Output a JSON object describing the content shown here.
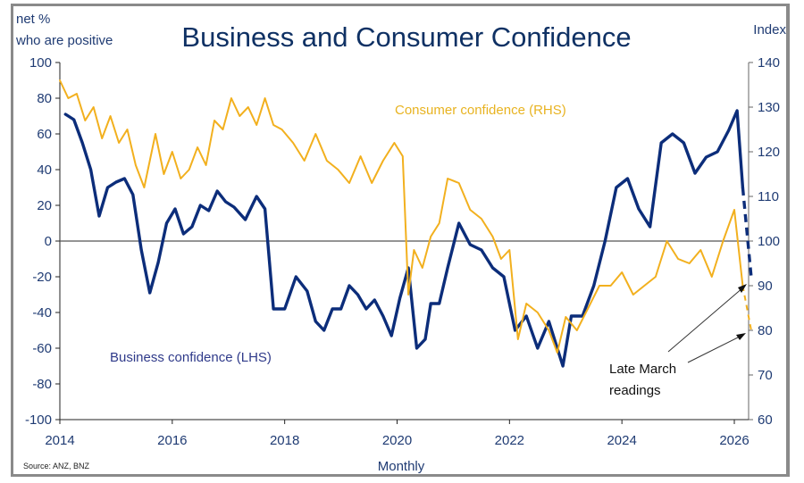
{
  "chart_data": {
    "type": "line",
    "title": "Business and Consumer Confidence",
    "left_axis": {
      "label_line1": "net %",
      "label_line2": "who are positive",
      "range": [
        -100,
        100
      ],
      "ticks": [
        100,
        80,
        60,
        40,
        20,
        0,
        -20,
        -40,
        -60,
        -80,
        -100
      ]
    },
    "right_axis": {
      "label": "Index",
      "range": [
        60,
        140
      ],
      "ticks": [
        140,
        130,
        120,
        110,
        100,
        90,
        80,
        70,
        60
      ]
    },
    "xlabel": "Monthly",
    "x_ticks": [
      "2014",
      "2016",
      "2018",
      "2020",
      "2022",
      "2024",
      "2026"
    ],
    "x_range": [
      2014,
      2026.5
    ],
    "source": "Source: ANZ, BNZ",
    "annotation": {
      "line1": "Late March",
      "line2": "readings"
    },
    "series": [
      {
        "name": "Business confidence (LHS)",
        "axis": "left",
        "color": "#0c2d7a",
        "x": [
          2014.1,
          2014.25,
          2014.4,
          2014.55,
          2014.7,
          2014.85,
          2015.0,
          2015.15,
          2015.3,
          2015.45,
          2015.6,
          2015.75,
          2015.9,
          2016.05,
          2016.2,
          2016.35,
          2016.5,
          2016.65,
          2016.8,
          2016.95,
          2017.1,
          2017.3,
          2017.5,
          2017.65,
          2017.8,
          2018.0,
          2018.2,
          2018.4,
          2018.55,
          2018.7,
          2018.85,
          2019.0,
          2019.15,
          2019.3,
          2019.45,
          2019.6,
          2019.75,
          2019.9,
          2020.05,
          2020.2,
          2020.35,
          2020.5,
          2020.6,
          2020.75,
          2020.9,
          2021.1,
          2021.3,
          2021.5,
          2021.7,
          2021.9,
          2022.1,
          2022.3,
          2022.5,
          2022.7,
          2022.95,
          2023.1,
          2023.3,
          2023.5,
          2023.7,
          2023.9,
          2024.1,
          2024.3,
          2024.5,
          2024.7,
          2024.9,
          2025.1,
          2025.3,
          2025.5,
          2025.7,
          2025.9,
          2026.05,
          2026.15
        ],
        "values": [
          71,
          68,
          55,
          40,
          14,
          30,
          33,
          35,
          26,
          -5,
          -29,
          -12,
          10,
          18,
          4,
          8,
          20,
          17,
          28,
          22,
          19,
          12,
          25,
          18,
          -38,
          -38,
          -20,
          -28,
          -45,
          -50,
          -38,
          -38,
          -25,
          -30,
          -38,
          -33,
          -42,
          -53,
          -32,
          -15,
          -60,
          -55,
          -35,
          -35,
          -15,
          10,
          -2,
          -5,
          -15,
          -20,
          -50,
          -42,
          -60,
          -45,
          -70,
          -42,
          -42,
          -25,
          0,
          30,
          35,
          18,
          8,
          55,
          60,
          55,
          38,
          47,
          50,
          62,
          73,
          30
        ],
        "dashed_tail": {
          "x": [
            2026.15,
            2026.3
          ],
          "values": [
            30,
            -20
          ]
        }
      },
      {
        "name": "Consumer confidence (RHS)",
        "axis": "right",
        "color": "#f2b01e",
        "x": [
          2014.0,
          2014.15,
          2014.3,
          2014.45,
          2014.6,
          2014.75,
          2014.9,
          2015.05,
          2015.2,
          2015.35,
          2015.5,
          2015.7,
          2015.85,
          2016.0,
          2016.15,
          2016.3,
          2016.45,
          2016.6,
          2016.75,
          2016.9,
          2017.05,
          2017.2,
          2017.35,
          2017.5,
          2017.65,
          2017.8,
          2017.95,
          2018.15,
          2018.35,
          2018.55,
          2018.75,
          2018.95,
          2019.15,
          2019.35,
          2019.55,
          2019.75,
          2019.95,
          2020.1,
          2020.2,
          2020.3,
          2020.45,
          2020.6,
          2020.75,
          2020.9,
          2021.1,
          2021.3,
          2021.5,
          2021.7,
          2021.85,
          2022.0,
          2022.15,
          2022.3,
          2022.5,
          2022.7,
          2022.85,
          2023.0,
          2023.2,
          2023.4,
          2023.6,
          2023.8,
          2024.0,
          2024.2,
          2024.4,
          2024.6,
          2024.8,
          2025.0,
          2025.2,
          2025.4,
          2025.6,
          2025.8,
          2026.0,
          2026.15
        ],
        "values": [
          136,
          132,
          133,
          127,
          130,
          123,
          128,
          122,
          125,
          117,
          112,
          124,
          115,
          120,
          114,
          116,
          121,
          117,
          127,
          125,
          132,
          128,
          130,
          126,
          132,
          126,
          125,
          122,
          118,
          124,
          118,
          116,
          113,
          119,
          113,
          118,
          122,
          119,
          88,
          98,
          94,
          101,
          104,
          114,
          113,
          107,
          105,
          101,
          96,
          98,
          78,
          86,
          84,
          80,
          75,
          83,
          80,
          85,
          90,
          90,
          93,
          88,
          90,
          92,
          100,
          96,
          95,
          98,
          92,
          100,
          107,
          90
        ],
        "dashed_tail": {
          "x": [
            2026.15,
            2026.3
          ],
          "values": [
            90,
            80
          ]
        }
      }
    ],
    "legend": [
      {
        "label": "Consumer confidence (RHS)",
        "placement": "top-center"
      },
      {
        "label": "Business confidence (LHS)",
        "placement": "bottom-left"
      }
    ],
    "grid": false,
    "zero_line": true
  }
}
